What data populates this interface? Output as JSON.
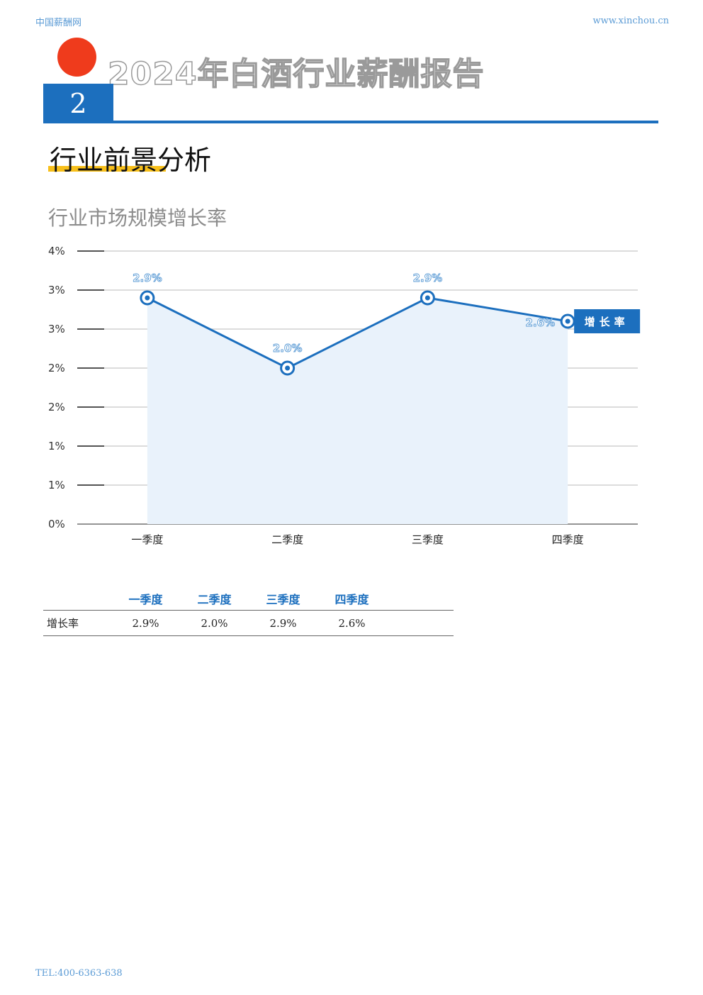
{
  "header": {
    "site_name": "中国薪酬网",
    "site_url": "www.xinchou.cn"
  },
  "report": {
    "title": "2024年白酒行业薪酬报告",
    "section_number": "2"
  },
  "section": {
    "title": "行业前景分析"
  },
  "chart_title": "行业市场规模增长率",
  "chart_data": {
    "type": "line",
    "categories": [
      "一季度",
      "二季度",
      "三季度",
      "四季度"
    ],
    "series": [
      {
        "name": "增长率",
        "values": [
          2.9,
          2.0,
          2.9,
          2.6
        ],
        "labels": [
          "2.9%",
          "2.0%",
          "2.9%",
          "2.6%"
        ],
        "color": "#1c6fbe"
      }
    ],
    "y_tick_labels": [
      "0%",
      "1%",
      "1%",
      "2%",
      "2%",
      "3%",
      "3%",
      "4%"
    ],
    "ylim": [
      0,
      3.5
    ],
    "grid": true,
    "area_fill": "#e9f2fb",
    "legend": "right"
  },
  "table": {
    "headers": [
      "",
      "一季度",
      "二季度",
      "三季度",
      "四季度"
    ],
    "rows": [
      {
        "label": "增长率",
        "values": [
          "2.9%",
          "2.0%",
          "2.9%",
          "2.6%"
        ]
      }
    ]
  },
  "footer": {
    "tel": "TEL:400-6363-638"
  },
  "colors": {
    "accent": "#1c6fbe",
    "dot": "#ef3b1c",
    "underline": "#f7bf1a"
  }
}
